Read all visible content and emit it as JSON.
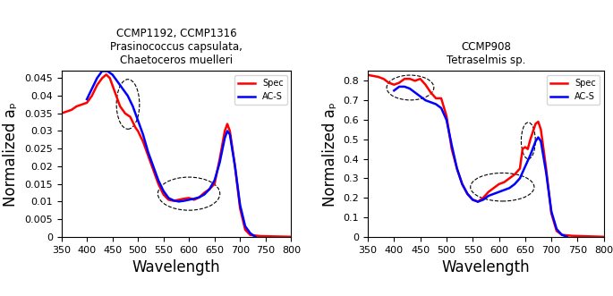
{
  "chart_data": [
    {
      "type": "line",
      "title": "CCMP1192, CCMP1316\nPrasinococcus capsulata,\nChaetoceros muelleri",
      "x_label": "Wavelength",
      "y_label": "Normalized aₚ",
      "xlim": [
        350,
        800
      ],
      "xticks": [
        350,
        400,
        450,
        500,
        550,
        600,
        650,
        700,
        750,
        800
      ],
      "ylim": [
        0,
        0.047
      ],
      "yticks": [
        0,
        0.005,
        0.01,
        0.015,
        0.02,
        0.025,
        0.03,
        0.035,
        0.04,
        0.045
      ],
      "grid": false,
      "legend": "upper right",
      "series": [
        {
          "name": "Spec",
          "color": "#ff0000",
          "x": [
            350,
            370,
            380,
            400,
            410,
            420,
            430,
            438,
            445,
            455,
            465,
            475,
            485,
            495,
            500,
            510,
            520,
            530,
            540,
            550,
            560,
            570,
            580,
            590,
            600,
            610,
            620,
            630,
            640,
            650,
            660,
            670,
            675,
            680,
            690,
            700,
            710,
            720,
            740,
            800
          ],
          "values": [
            0.035,
            0.036,
            0.037,
            0.038,
            0.04,
            0.043,
            0.045,
            0.046,
            0.045,
            0.041,
            0.037,
            0.035,
            0.034,
            0.031,
            0.03,
            0.027,
            0.023,
            0.019,
            0.015,
            0.012,
            0.0105,
            0.0102,
            0.0105,
            0.0108,
            0.011,
            0.0105,
            0.0112,
            0.0125,
            0.0135,
            0.015,
            0.022,
            0.03,
            0.032,
            0.03,
            0.02,
            0.008,
            0.002,
            0.0005,
            0.0002,
            0
          ]
        },
        {
          "name": "AC-S",
          "color": "#0000ff",
          "x": [
            400,
            410,
            420,
            430,
            440,
            450,
            460,
            470,
            480,
            490,
            500,
            510,
            520,
            530,
            540,
            550,
            560,
            570,
            580,
            590,
            600,
            610,
            620,
            630,
            640,
            650,
            660,
            670,
            675,
            680,
            690,
            700,
            710,
            720,
            730
          ],
          "values": [
            0.039,
            0.042,
            0.045,
            0.047,
            0.047,
            0.046,
            0.044,
            0.042,
            0.04,
            0.037,
            0.033,
            0.029,
            0.024,
            0.02,
            0.016,
            0.013,
            0.011,
            0.0103,
            0.01,
            0.0102,
            0.0105,
            0.0108,
            0.0112,
            0.012,
            0.0135,
            0.016,
            0.021,
            0.028,
            0.03,
            0.029,
            0.02,
            0.009,
            0.003,
            0.001,
            0
          ]
        }
      ]
    },
    {
      "type": "line",
      "title": "CCMP908\nTetraselmis sp.",
      "x_label": "Wavelength",
      "y_label": "Normalized aₚ",
      "xlim": [
        350,
        800
      ],
      "xticks": [
        350,
        400,
        450,
        500,
        550,
        600,
        650,
        700,
        750,
        800
      ],
      "ylim": [
        0,
        0.85
      ],
      "yticks": [
        0,
        0.1,
        0.2,
        0.3,
        0.4,
        0.5,
        0.6,
        0.7,
        0.8
      ],
      "grid": false,
      "legend": "upper right",
      "series": [
        {
          "name": "Spec",
          "color": "#ff0000",
          "x": [
            350,
            370,
            380,
            390,
            400,
            410,
            420,
            430,
            440,
            450,
            460,
            470,
            480,
            490,
            500,
            510,
            520,
            530,
            540,
            550,
            560,
            570,
            580,
            590,
            600,
            610,
            620,
            630,
            640,
            645,
            650,
            655,
            660,
            670,
            675,
            680,
            690,
            700,
            710,
            720,
            740,
            800
          ],
          "values": [
            0.83,
            0.82,
            0.81,
            0.79,
            0.78,
            0.79,
            0.81,
            0.81,
            0.8,
            0.81,
            0.78,
            0.74,
            0.71,
            0.71,
            0.62,
            0.45,
            0.35,
            0.27,
            0.22,
            0.19,
            0.18,
            0.2,
            0.23,
            0.25,
            0.27,
            0.28,
            0.3,
            0.32,
            0.35,
            0.45,
            0.46,
            0.45,
            0.5,
            0.58,
            0.59,
            0.55,
            0.35,
            0.12,
            0.03,
            0.01,
            0.005,
            0
          ]
        },
        {
          "name": "AC-S",
          "color": "#0000ff",
          "x": [
            400,
            410,
            420,
            430,
            440,
            450,
            460,
            470,
            480,
            490,
            500,
            510,
            520,
            530,
            540,
            550,
            560,
            570,
            580,
            590,
            600,
            610,
            620,
            630,
            640,
            650,
            660,
            670,
            675,
            680,
            690,
            700,
            710,
            720,
            730
          ],
          "values": [
            0.75,
            0.77,
            0.77,
            0.76,
            0.74,
            0.72,
            0.7,
            0.69,
            0.68,
            0.66,
            0.6,
            0.47,
            0.35,
            0.27,
            0.22,
            0.19,
            0.18,
            0.19,
            0.21,
            0.22,
            0.23,
            0.24,
            0.25,
            0.27,
            0.3,
            0.36,
            0.42,
            0.49,
            0.51,
            0.49,
            0.33,
            0.13,
            0.04,
            0.01,
            0
          ]
        }
      ]
    }
  ]
}
